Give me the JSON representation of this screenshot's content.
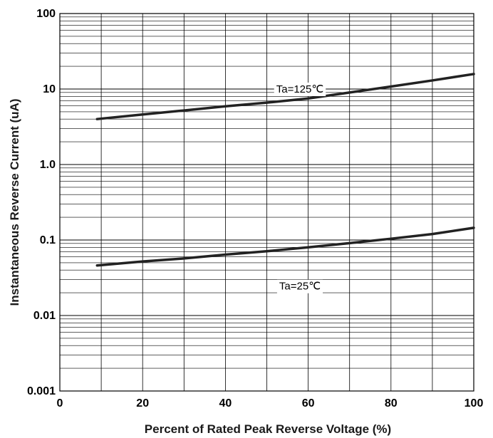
{
  "chart_data": {
    "type": "line",
    "title": "",
    "xlabel": "Percent of Rated Peak Reverse Voltage (%)",
    "ylabel": "Instantaneous Reverse Current (uA)",
    "xlim": [
      0,
      100
    ],
    "ylim": [
      0.001,
      100
    ],
    "yscale": "log",
    "grid": true,
    "x_ticks": [
      {
        "value": 0,
        "label": "0"
      },
      {
        "value": 20,
        "label": "20"
      },
      {
        "value": 40,
        "label": "40"
      },
      {
        "value": 60,
        "label": "60"
      },
      {
        "value": 80,
        "label": "80"
      },
      {
        "value": 100,
        "label": "100"
      }
    ],
    "y_ticks": [
      {
        "value": 0.001,
        "label": "0.001"
      },
      {
        "value": 0.01,
        "label": "0.01"
      },
      {
        "value": 0.1,
        "label": "0.1"
      },
      {
        "value": 1,
        "label": "1.0"
      },
      {
        "value": 10,
        "label": "10"
      },
      {
        "value": 100,
        "label": "100"
      }
    ],
    "series": [
      {
        "name": "Ta=125℃",
        "x": [
          9,
          20,
          30,
          40,
          50,
          60,
          70,
          80,
          90,
          100
        ],
        "y": [
          4.0,
          4.6,
          5.2,
          5.9,
          6.6,
          7.5,
          9.0,
          10.8,
          13.0,
          15.8
        ]
      },
      {
        "name": "Ta=25℃",
        "x": [
          9,
          20,
          30,
          40,
          50,
          60,
          70,
          80,
          90,
          100
        ],
        "y": [
          0.046,
          0.052,
          0.057,
          0.064,
          0.071,
          0.08,
          0.091,
          0.104,
          0.12,
          0.145
        ]
      }
    ],
    "annotations": [
      {
        "text": "Ta=125℃",
        "x": 58,
        "y": 10
      },
      {
        "text": "Ta=25℃",
        "x": 58,
        "y": 0.0245
      }
    ]
  }
}
